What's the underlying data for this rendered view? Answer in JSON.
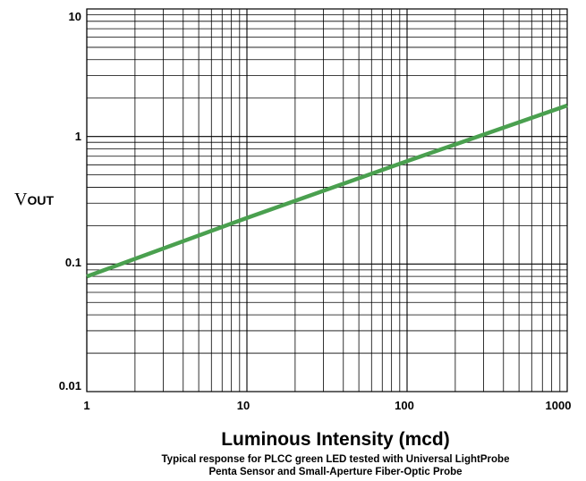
{
  "chart_data": {
    "type": "line",
    "x_scale": "log",
    "y_scale": "log",
    "xlim": [
      1,
      1000
    ],
    "ylim": [
      0.01,
      10
    ],
    "grid": true,
    "x_ticks": [
      "1",
      "10",
      "100",
      "1000"
    ],
    "y_ticks": [
      "10",
      "1",
      "0.1",
      "0.01"
    ],
    "ylabel_main": "V",
    "ylabel_sub": "OUT",
    "xlabel": "Luminous Intensity (mcd)",
    "annotation_lines": [
      "Typical response for PLCC green LED tested with Universal LightProbe",
      "Penta Sensor and Small-Aperture Fiber-Optic Probe"
    ],
    "series_color": "#4aa04f",
    "series": [
      {
        "x": [
          1,
          10,
          100,
          1000,
          1100
        ],
        "y": [
          0.08,
          0.23,
          0.64,
          1.75,
          1.95
        ]
      }
    ]
  }
}
